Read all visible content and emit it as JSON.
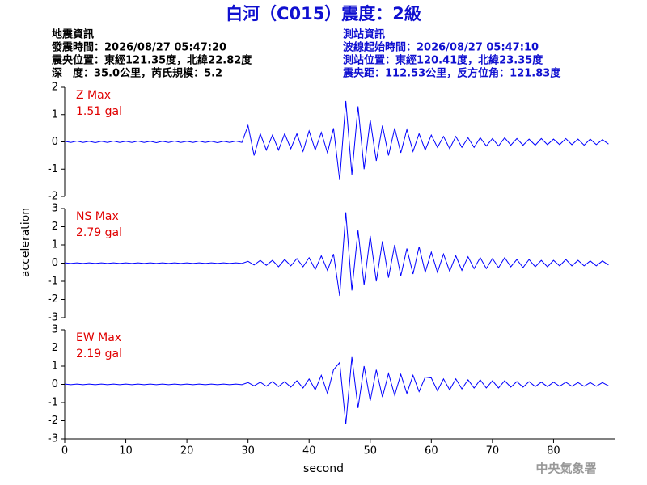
{
  "header": {
    "title": "白河（C015）震度：2級",
    "left": [
      "地震資訊",
      "發震時間：2026/08/27 05:47:20",
      "震央位置：東經121.35度，北緯22.82度",
      "深　度：35.0公里，芮氏規模：5.2"
    ],
    "right": [
      "測站資訊",
      "波線起始時間：2026/08/27 05:47:10",
      "測站位置：東經120.41度，北緯23.35度",
      "震央距：112.53公里，反方位角：121.83度"
    ]
  },
  "footer": "中央氣象署",
  "chart_data": {
    "type": "line",
    "xlabel": "second",
    "ylabel": "acceleration",
    "xlim": [
      0,
      90
    ],
    "xticks": [
      0,
      10,
      20,
      30,
      40,
      50,
      60,
      70,
      80
    ],
    "x": [
      0,
      1,
      2,
      3,
      4,
      5,
      6,
      7,
      8,
      9,
      10,
      11,
      12,
      13,
      14,
      15,
      16,
      17,
      18,
      19,
      20,
      21,
      22,
      23,
      24,
      25,
      26,
      27,
      28,
      29,
      30,
      31,
      32,
      33,
      34,
      35,
      36,
      37,
      38,
      39,
      40,
      41,
      42,
      43,
      44,
      45,
      46,
      47,
      48,
      49,
      50,
      51,
      52,
      53,
      54,
      55,
      56,
      57,
      58,
      59,
      60,
      61,
      62,
      63,
      64,
      65,
      66,
      67,
      68,
      69,
      70,
      71,
      72,
      73,
      74,
      75,
      76,
      77,
      78,
      79,
      80,
      81,
      82,
      83,
      84,
      85,
      86,
      87,
      88,
      89
    ],
    "panels": [
      {
        "label": "Z Max",
        "peak": "1.51 gal",
        "color": "#0000ff",
        "ylim": [
          -2,
          2
        ],
        "yticks": [
          -2,
          -1,
          0,
          1,
          2
        ],
        "values": [
          0.02,
          -0.02,
          0.03,
          -0.02,
          0.02,
          -0.03,
          0.02,
          -0.02,
          0.03,
          -0.02,
          0.02,
          -0.02,
          0.03,
          -0.02,
          0.02,
          -0.03,
          0.02,
          -0.02,
          0.03,
          -0.02,
          0.02,
          -0.02,
          0.03,
          -0.02,
          0.02,
          -0.03,
          0.02,
          -0.02,
          0.03,
          -0.02,
          0.6,
          -0.5,
          0.3,
          -0.3,
          0.25,
          -0.3,
          0.3,
          -0.25,
          0.3,
          -0.35,
          0.4,
          -0.3,
          0.35,
          -0.4,
          0.5,
          -1.4,
          1.5,
          -1.2,
          1.3,
          -1.0,
          0.8,
          -0.7,
          0.6,
          -0.5,
          0.5,
          -0.4,
          0.45,
          -0.35,
          0.3,
          -0.3,
          0.25,
          -0.2,
          0.2,
          -0.25,
          0.2,
          -0.2,
          0.15,
          -0.2,
          0.15,
          -0.15,
          0.12,
          -0.15,
          0.15,
          -0.12,
          0.12,
          -0.12,
          0.1,
          -0.12,
          0.12,
          -0.1,
          0.1,
          -0.1,
          0.12,
          -0.1,
          0.1,
          -0.12,
          0.1,
          -0.1,
          0.08,
          -0.08
        ]
      },
      {
        "label": "NS Max",
        "peak": "2.79 gal",
        "color": "#0000ff",
        "ylim": [
          -3,
          3
        ],
        "yticks": [
          -3,
          -2,
          -1,
          0,
          1,
          2,
          3
        ],
        "values": [
          0.02,
          -0.02,
          0.02,
          -0.02,
          0.02,
          -0.02,
          0.02,
          -0.02,
          0.02,
          -0.02,
          0.02,
          -0.02,
          0.02,
          -0.02,
          0.02,
          -0.02,
          0.02,
          -0.02,
          0.02,
          -0.02,
          0.02,
          -0.02,
          0.02,
          -0.02,
          0.02,
          -0.02,
          0.02,
          -0.02,
          0.02,
          -0.02,
          0.1,
          -0.1,
          0.15,
          -0.12,
          0.15,
          -0.2,
          0.2,
          -0.15,
          0.25,
          -0.2,
          0.3,
          -0.35,
          0.4,
          -0.4,
          0.5,
          -1.8,
          2.79,
          -1.5,
          1.8,
          -1.2,
          1.5,
          -1.0,
          1.2,
          -0.8,
          1.0,
          -0.7,
          0.8,
          -0.6,
          0.9,
          -0.5,
          0.6,
          -0.5,
          0.5,
          -0.45,
          0.4,
          -0.4,
          0.35,
          -0.3,
          0.3,
          -0.3,
          0.25,
          -0.25,
          0.3,
          -0.2,
          0.2,
          -0.25,
          0.2,
          -0.2,
          0.15,
          -0.2,
          0.15,
          -0.15,
          0.2,
          -0.15,
          0.15,
          -0.15,
          0.12,
          -0.15,
          0.12,
          -0.1
        ]
      },
      {
        "label": "EW Max",
        "peak": "2.19 gal",
        "color": "#0000ff",
        "ylim": [
          -3,
          3
        ],
        "yticks": [
          -3,
          -2,
          -1,
          0,
          1,
          2,
          3
        ],
        "values": [
          0.02,
          -0.02,
          0.02,
          -0.02,
          0.02,
          -0.02,
          0.02,
          -0.02,
          0.02,
          -0.02,
          0.02,
          -0.02,
          0.02,
          -0.02,
          0.02,
          -0.02,
          0.02,
          -0.02,
          0.02,
          -0.02,
          0.02,
          -0.02,
          0.02,
          -0.02,
          0.02,
          -0.02,
          0.02,
          -0.02,
          0.02,
          -0.02,
          0.1,
          -0.08,
          0.12,
          -0.1,
          0.15,
          -0.12,
          0.15,
          -0.15,
          0.2,
          -0.2,
          0.3,
          -0.3,
          0.5,
          -0.5,
          0.8,
          1.2,
          -2.19,
          1.5,
          -1.3,
          1.0,
          -0.9,
          0.8,
          -0.7,
          0.6,
          -0.6,
          0.55,
          -0.5,
          0.5,
          -0.4,
          0.4,
          0.35,
          -0.35,
          0.3,
          -0.3,
          0.3,
          -0.25,
          0.25,
          -0.2,
          0.25,
          -0.2,
          0.2,
          -0.2,
          0.2,
          -0.15,
          0.15,
          -0.15,
          0.15,
          -0.12,
          0.12,
          -0.12,
          0.12,
          -0.1,
          0.12,
          -0.1,
          0.1,
          -0.1,
          0.1,
          -0.1,
          0.1,
          -0.08
        ]
      }
    ]
  }
}
